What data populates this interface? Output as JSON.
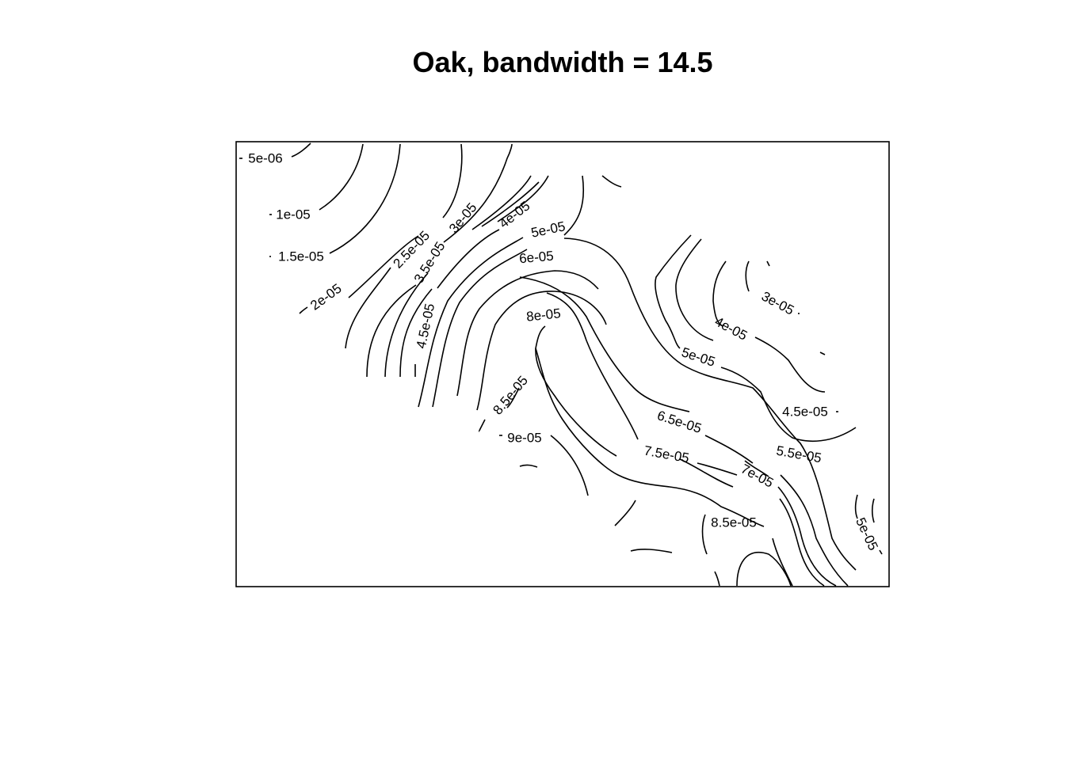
{
  "chart_data": {
    "type": "contour",
    "title": "Oak, bandwidth = 14.5",
    "xlabel": "",
    "ylabel": "",
    "axes_shown": false,
    "frame": true,
    "contour_labels": [
      {
        "text": "5e-06"
      },
      {
        "text": "1e-05"
      },
      {
        "text": "1.5e-05"
      },
      {
        "text": "2e-05"
      },
      {
        "text": "2.5e-05"
      },
      {
        "text": "3e-05"
      },
      {
        "text": "3.5e-05"
      },
      {
        "text": "4e-05"
      },
      {
        "text": "4.5e-05"
      },
      {
        "text": "5e-05"
      },
      {
        "text": "6e-05"
      },
      {
        "text": "8e-05"
      },
      {
        "text": "8.5e-05"
      },
      {
        "text": "9e-05"
      },
      {
        "text": "3e-05"
      },
      {
        "text": "4e-05"
      },
      {
        "text": "5e-05"
      },
      {
        "text": "4.5e-05"
      },
      {
        "text": "6.5e-05"
      },
      {
        "text": "5.5e-05"
      },
      {
        "text": "7.5e-05"
      },
      {
        "text": "7e-05"
      },
      {
        "text": "8.5e-05"
      },
      {
        "text": "5e-05"
      }
    ]
  }
}
